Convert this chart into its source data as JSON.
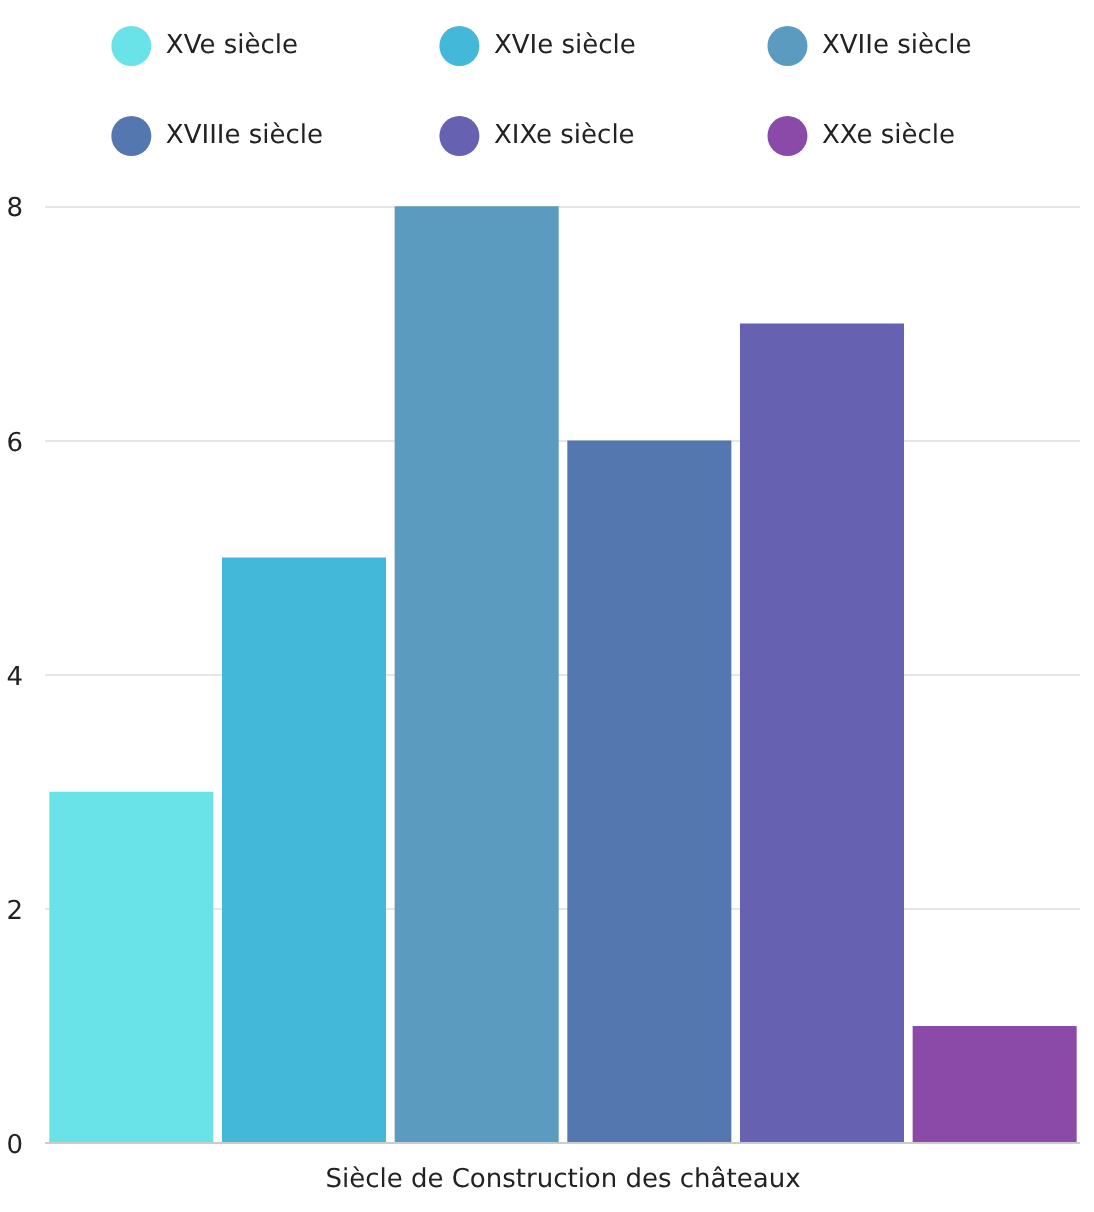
{
  "chart_data": {
    "type": "bar",
    "categories": [
      "Siècle de Construction des châteaux"
    ],
    "series": [
      {
        "name": "XVe siècle",
        "color": "#6ae3e8",
        "values": [
          3
        ]
      },
      {
        "name": "XVIe siècle",
        "color": "#43b8d8",
        "values": [
          5
        ]
      },
      {
        "name": "XVIIe siècle",
        "color": "#5b9bbf",
        "values": [
          8
        ]
      },
      {
        "name": "XVIIIe siècle",
        "color": "#5577b0",
        "values": [
          6
        ]
      },
      {
        "name": "XIXe siècle",
        "color": "#6661b0",
        "values": [
          7
        ]
      },
      {
        "name": "XXe siècle",
        "color": "#8b4aa8",
        "values": [
          1
        ]
      }
    ],
    "ylim": [
      0,
      8
    ],
    "yticks": [
      0,
      2,
      4,
      6,
      8
    ],
    "grid": "y",
    "legend": "top"
  }
}
